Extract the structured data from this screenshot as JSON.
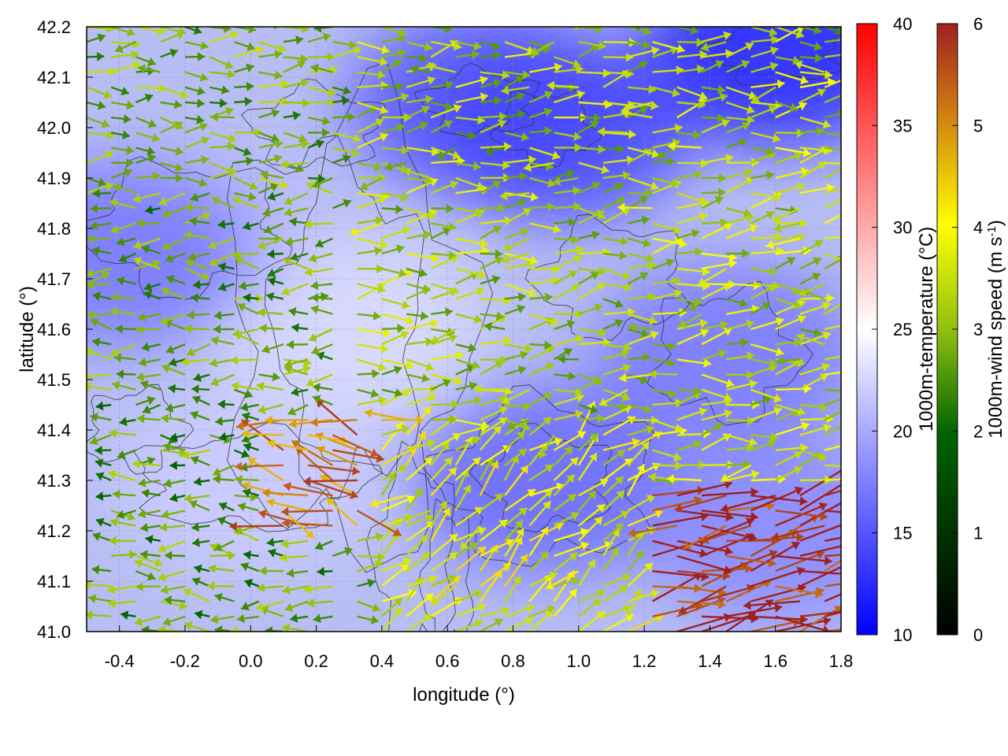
{
  "chart_data": {
    "type": "heatmap",
    "subtype": "wind-vector field over temperature map with contours",
    "title": "",
    "xlabel": "longitude (°)",
    "ylabel": "latitude (°)",
    "xlim": [
      -0.5,
      1.8
    ],
    "ylim": [
      41.0,
      42.2
    ],
    "x_ticks": [
      "-0.4",
      "-0.2",
      "0.0",
      "0.2",
      "0.4",
      "0.6",
      "0.8",
      "1.0",
      "1.2",
      "1.4",
      "1.6",
      "1.8"
    ],
    "y_ticks": [
      "41.0",
      "41.1",
      "41.2",
      "41.3",
      "41.4",
      "41.5",
      "41.6",
      "41.7",
      "41.8",
      "41.9",
      "42.0",
      "42.1",
      "42.2"
    ],
    "grid": true,
    "temperature_colorbar": {
      "label": "1000m-temperature (°C)",
      "range": [
        10,
        40
      ],
      "ticks": [
        "10",
        "15",
        "20",
        "25",
        "30",
        "35",
        "40"
      ],
      "colors": [
        "#0000ff",
        "#ffffff",
        "#ff0000"
      ]
    },
    "wind_colorbar": {
      "label_main": "1000m-wind speed (m s",
      "label_sup": "-1",
      "label_end": ")",
      "range": [
        0,
        6
      ],
      "ticks": [
        "0",
        "1",
        "2",
        "3",
        "4",
        "5",
        "6"
      ],
      "colors": [
        "#000000",
        "#006400",
        "#90c010",
        "#ffff00",
        "#d08010",
        "#a02020"
      ]
    },
    "temperature_regions": [
      {
        "lon": 0.3,
        "lat": 41.6,
        "temp": 23
      },
      {
        "lon": 0.0,
        "lat": 41.3,
        "temp": 22
      },
      {
        "lon": -0.2,
        "lat": 41.8,
        "temp": 21
      },
      {
        "lon": 0.7,
        "lat": 42.05,
        "temp": 15
      },
      {
        "lon": 1.6,
        "lat": 42.15,
        "temp": 12
      },
      {
        "lon": 0.95,
        "lat": 42.0,
        "temp": 14
      },
      {
        "lon": 0.9,
        "lat": 41.3,
        "temp": 16
      },
      {
        "lon": 1.45,
        "lat": 41.55,
        "temp": 17
      },
      {
        "lon": -0.4,
        "lat": 41.75,
        "temp": 17
      },
      {
        "lon": 1.6,
        "lat": 41.2,
        "temp": 18
      }
    ],
    "wind_regions": [
      {
        "lon_min": -0.5,
        "lon_max": 0.3,
        "lat_min": 41.0,
        "lat_max": 41.9,
        "u": -1,
        "v": 0,
        "speed": 2.0
      },
      {
        "lon_min": 0.3,
        "lon_max": 1.2,
        "lat_min": 41.4,
        "lat_max": 42.2,
        "u": 1,
        "v": 0.1,
        "speed": 2.6
      },
      {
        "lon_min": 1.2,
        "lon_max": 1.8,
        "lat_min": 41.3,
        "lat_max": 42.2,
        "u": 1,
        "v": 0.1,
        "speed": 2.8
      },
      {
        "lon_min": 1.2,
        "lon_max": 1.8,
        "lat_min": 41.0,
        "lat_max": 41.3,
        "u": 1,
        "v": 0.15,
        "speed": 5.8
      },
      {
        "lon_min": 0.1,
        "lon_max": 0.5,
        "lat_min": 41.2,
        "lat_max": 41.45,
        "u": -1,
        "v": 0.3,
        "speed": 5.0
      },
      {
        "lon_min": 0.4,
        "lon_max": 1.2,
        "lat_min": 41.0,
        "lat_max": 41.4,
        "u": 0.6,
        "v": 0.5,
        "speed": 3.2
      }
    ]
  }
}
